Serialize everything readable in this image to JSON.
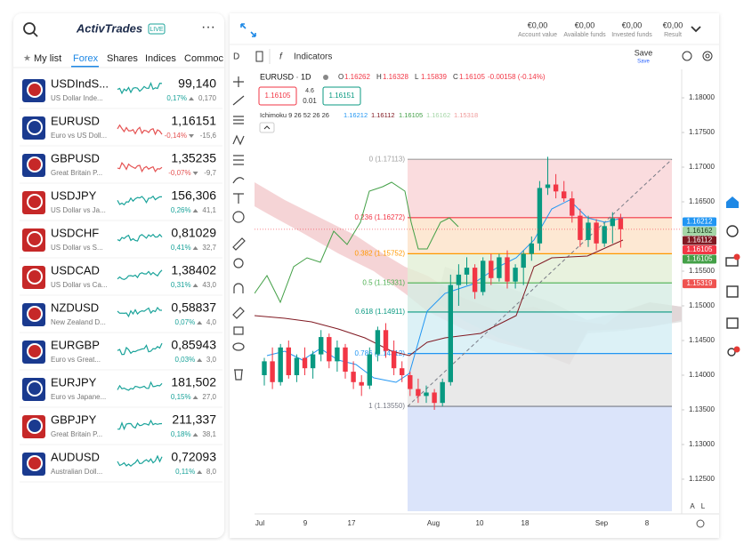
{
  "brand": {
    "name": "ActivTrades",
    "badge": "LIVE"
  },
  "tabs": [
    "My list",
    "Forex",
    "Shares",
    "Indices",
    "Commoc"
  ],
  "watchlist": [
    {
      "symbol": "USDIndS...",
      "desc": "US Dollar Inde...",
      "price": "99,140",
      "pct": "0,17%",
      "change": "0,170",
      "up": true
    },
    {
      "symbol": "EURUSD",
      "desc": "Euro vs US Doll...",
      "price": "1,16151",
      "pct": "-0,14%",
      "change": "-15,6",
      "up": false
    },
    {
      "symbol": "GBPUSD",
      "desc": "Great Britain P...",
      "price": "1,35235",
      "pct": "-0,07%",
      "change": "-9,7",
      "up": false
    },
    {
      "symbol": "USDJPY",
      "desc": "US Dollar vs Ja...",
      "price": "156,306",
      "pct": "0,26%",
      "change": "41,1",
      "up": true
    },
    {
      "symbol": "USDCHF",
      "desc": "US Dollar vs S...",
      "price": "0,81029",
      "pct": "0,41%",
      "change": "32,7",
      "up": true
    },
    {
      "symbol": "USDCAD",
      "desc": "US Dollar vs Ca...",
      "price": "1,38402",
      "pct": "0,31%",
      "change": "43,0",
      "up": true
    },
    {
      "symbol": "NZDUSD",
      "desc": "New Zealand D...",
      "price": "0,58837",
      "pct": "0,07%",
      "change": "4,0",
      "up": true
    },
    {
      "symbol": "EURGBP",
      "desc": "Euro vs Great...",
      "price": "0,85943",
      "pct": "0,03%",
      "change": "3,0",
      "up": true
    },
    {
      "symbol": "EURJPY",
      "desc": "Euro vs Japane...",
      "price": "181,502",
      "pct": "0,15%",
      "change": "27,0",
      "up": true
    },
    {
      "symbol": "GBPJPY",
      "desc": "Great Britain P...",
      "price": "211,337",
      "pct": "0,18%",
      "change": "38,1",
      "up": true
    },
    {
      "symbol": "AUDUSD",
      "desc": "Australian Doll...",
      "price": "0,72093",
      "pct": "0,11%",
      "change": "8,0",
      "up": true
    }
  ],
  "account": [
    {
      "value": "€0,00",
      "label": "Account value"
    },
    {
      "value": "€0,00",
      "label": "Available funds"
    },
    {
      "value": "€0,00",
      "label": "Invested funds"
    },
    {
      "value": "€0,00",
      "label": "Result"
    }
  ],
  "toolbar": {
    "interval": "D",
    "indicators": "Indicators",
    "save": "Save",
    "save_sub": "Save"
  },
  "legend": {
    "symbol": "EURUSD · 1D",
    "ohlc": [
      {
        "k": "O",
        "v": "1.16262"
      },
      {
        "k": "H",
        "v": "1.16328"
      },
      {
        "k": "L",
        "v": "1.15839"
      },
      {
        "k": "C",
        "v": "1.16105"
      }
    ],
    "change": "-0.00158 (-0.14%)",
    "sell": "1.16105",
    "spread": "4.6",
    "qty": "0.01",
    "buy": "1.16151",
    "ichimoku": "Ichimoku 9 26 52 26 26",
    "ichimoku_values": [
      {
        "v": "1.16212",
        "color": "#2196f3"
      },
      {
        "v": "1.16112",
        "color": "#801922"
      },
      {
        "v": "1.16105",
        "color": "#43a047"
      },
      {
        "v": "1.16162",
        "color": "#a5d6a7"
      },
      {
        "v": "1.15318",
        "color": "#ef9a9a"
      }
    ]
  },
  "chart": {
    "type": "candlestick",
    "ylim": [
      1.12038,
      1.18385
    ],
    "yticks": [
      {
        "value": 1.18,
        "label": "1.18000"
      },
      {
        "value": 1.175,
        "label": "1.17500"
      },
      {
        "value": 1.17,
        "label": "1.17000"
      },
      {
        "value": 1.165,
        "label": "1.16500"
      },
      {
        "value": 1.16,
        "label": "1.16000"
      },
      {
        "value": 1.155,
        "label": "1.15500"
      },
      {
        "value": 1.15,
        "label": "1.15000"
      },
      {
        "value": 1.145,
        "label": "1.14500"
      },
      {
        "value": 1.14,
        "label": "1.14000"
      },
      {
        "value": 1.135,
        "label": "1.13500"
      },
      {
        "value": 1.13,
        "label": "1.13000"
      },
      {
        "value": 1.125,
        "label": "1.12500"
      }
    ],
    "dates": [
      "Jul",
      "9",
      "17",
      "Aug",
      "10",
      "18",
      "Sep",
      "8"
    ],
    "open": [
      1.14,
      1.142,
      1.139,
      1.144,
      1.14,
      1.1425,
      1.141,
      1.143,
      1.1455,
      1.142,
      1.144,
      1.1405,
      1.139,
      1.1385,
      1.143,
      1.1465,
      1.1435,
      1.141,
      1.14,
      1.138,
      1.137,
      1.1375,
      1.136,
      1.139,
      1.153,
      1.1545,
      1.1555,
      1.152,
      1.1565,
      1.154,
      1.157,
      1.1535,
      1.1555,
      1.1575,
      1.159,
      1.167,
      1.1675,
      1.1665,
      1.1655,
      1.163,
      1.1595,
      1.162,
      1.159,
      1.1615,
      1.16262
    ],
    "high": [
      1.1425,
      1.144,
      1.1445,
      1.145,
      1.143,
      1.144,
      1.1435,
      1.1465,
      1.146,
      1.145,
      1.1445,
      1.142,
      1.14,
      1.144,
      1.147,
      1.1475,
      1.145,
      1.142,
      1.1405,
      1.1395,
      1.1385,
      1.138,
      1.1395,
      1.1545,
      1.156,
      1.157,
      1.156,
      1.157,
      1.1575,
      1.1575,
      1.158,
      1.156,
      1.158,
      1.16,
      1.168,
      1.1715,
      1.169,
      1.168,
      1.1665,
      1.164,
      1.163,
      1.1625,
      1.162,
      1.1635,
      1.16328
    ],
    "low": [
      1.1385,
      1.138,
      1.1385,
      1.1395,
      1.139,
      1.14,
      1.1395,
      1.142,
      1.141,
      1.1405,
      1.1395,
      1.138,
      1.137,
      1.138,
      1.142,
      1.1425,
      1.14,
      1.139,
      1.137,
      1.136,
      1.136,
      1.135,
      1.1355,
      1.1385,
      1.15,
      1.153,
      1.151,
      1.1515,
      1.153,
      1.1535,
      1.1525,
      1.1525,
      1.153,
      1.1565,
      1.158,
      1.166,
      1.1655,
      1.165,
      1.162,
      1.1585,
      1.1585,
      1.158,
      1.1585,
      1.159,
      1.15839
    ],
    "close": [
      1.142,
      1.139,
      1.144,
      1.14,
      1.1425,
      1.141,
      1.143,
      1.1455,
      1.142,
      1.144,
      1.1405,
      1.139,
      1.1385,
      1.143,
      1.1465,
      1.1435,
      1.141,
      1.14,
      1.138,
      1.137,
      1.1375,
      1.136,
      1.139,
      1.153,
      1.1545,
      1.1555,
      1.152,
      1.1565,
      1.154,
      1.157,
      1.1535,
      1.1555,
      1.1575,
      1.159,
      1.167,
      1.1675,
      1.1665,
      1.1655,
      1.163,
      1.1595,
      1.162,
      1.159,
      1.1615,
      1.16262,
      1.16105
    ],
    "fib": [
      {
        "value": 1.17113,
        "label": "0 (1.17113)",
        "color": "#9e9e9e",
        "fill": "#f9d3d6"
      },
      {
        "value": 1.16272,
        "label": "0.236 (1.16272)",
        "color": "#f23645",
        "fill": "#fde2c8"
      },
      {
        "value": 1.15752,
        "label": "0.382 (1.15752)",
        "color": "#ff9800",
        "fill": "#e2efd6"
      },
      {
        "value": 1.15331,
        "label": "0.5 (1.15331)",
        "color": "#4caf50",
        "fill": "#d6ece3"
      },
      {
        "value": 1.14911,
        "label": "0.618 (1.14911)",
        "color": "#089981",
        "fill": "#d3eef4"
      },
      {
        "value": 1.14312,
        "label": "0.786 (1.14312)",
        "color": "#2196f3",
        "fill": "#e3e3e3"
      },
      {
        "value": 1.1355,
        "label": "1 (1.13550)",
        "color": "#787b86",
        "fill": "#d2ddf9"
      }
    ],
    "price_tags": [
      {
        "value": 1.16212,
        "color": "#2196f3"
      },
      {
        "value": 1.16162,
        "color": "#a5d6a7"
      },
      {
        "value": 1.16112,
        "color": "#801922"
      },
      {
        "value": 1.16105,
        "color": "#f23645"
      },
      {
        "value": 1.16105,
        "color": "#43a047"
      },
      {
        "value": 1.15319,
        "color": "#ef5350"
      }
    ],
    "scale_buttons": [
      "A",
      "L"
    ]
  }
}
